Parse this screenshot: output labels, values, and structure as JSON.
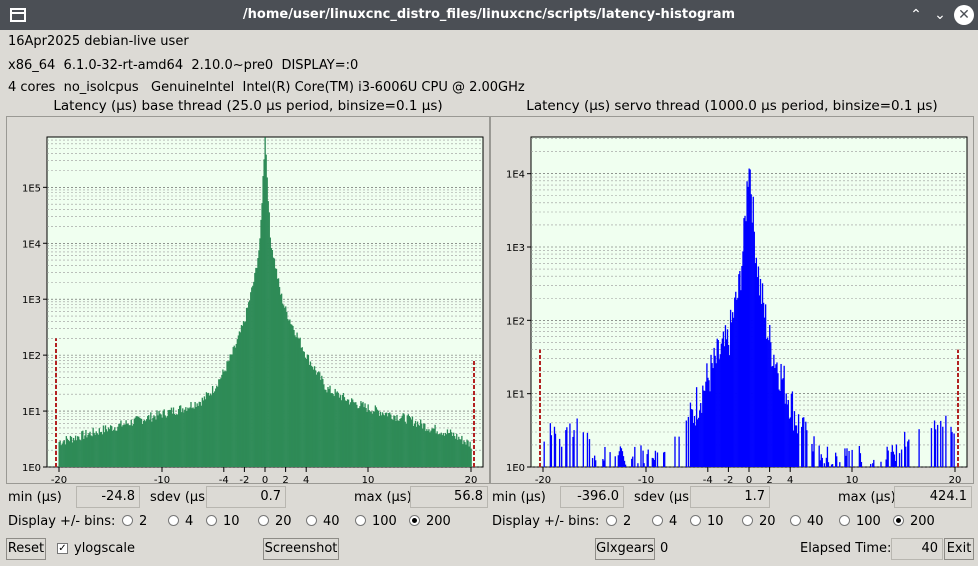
{
  "window": {
    "title": "/home/user/linuxcnc_distro_files/linuxcnc/scripts/latency-histogram",
    "icons": [
      "window-menu-icon",
      "maximize-icon",
      "minimize-icon",
      "close-icon"
    ]
  },
  "info": {
    "line1": "16Apr2025 debian-live user",
    "line2": "x86_64  6.1.0-32-rt-amd64  2.10.0~pre0  DISPLAY=:0",
    "line3": "4 cores  no_isolcpus   GenuineIntel  Intel(R) Core(TM) i3-6006U CPU @ 2.00GHz"
  },
  "panels": [
    {
      "title": "Latency (µs) base thread (25.0 µs period, binsize=0.1 µs)",
      "min_label": "min (µs)",
      "min_value": "-24.8",
      "sdev_label": "sdev (µs)",
      "sdev_value": "0.7",
      "max_label": "max (µs)",
      "max_value": "56.8",
      "bins_label": "Display +/- bins:",
      "bins_options": [
        "2",
        "4",
        "10",
        "20",
        "40",
        "100",
        "200"
      ],
      "bins_selected": "200"
    },
    {
      "title": "Latency (µs) servo thread (1000.0 µs period, binsize=0.1 µs)",
      "min_label": "min (µs)",
      "min_value": "-396.0",
      "sdev_label": "sdev (µs)",
      "sdev_value": "1.7",
      "max_label": "max (µs)",
      "max_value": "424.1",
      "bins_label": "Display +/- bins:",
      "bins_options": [
        "2",
        "4",
        "10",
        "20",
        "40",
        "100",
        "200"
      ],
      "bins_selected": "200"
    }
  ],
  "bottom": {
    "reset_label": "Reset",
    "ylogscale_label": "ylogscale",
    "ylogscale_checked": true,
    "screenshot_label": "Screenshot",
    "glxgears_label": "Glxgears",
    "glxgears_count": "0",
    "elapsed_label": "Elapsed Time:",
    "elapsed_value": "40",
    "exit_label": "Exit"
  },
  "chart_data": [
    {
      "type": "bar",
      "ylog": true,
      "bar_color": "#2e8b57",
      "outlier_color": "#b22222",
      "plot_bg": "#f0fff0",
      "xlim": [
        -20,
        20
      ],
      "ylim_log10": [
        0,
        5.9
      ],
      "x_ticks": [
        -20,
        -10,
        -4,
        -2,
        0,
        2,
        4,
        10,
        20
      ],
      "y_ticks": [
        "1E0",
        "1E1",
        "1E2",
        "1E3",
        "1E4",
        "1E5"
      ],
      "envelope_log10": [
        [
          -20,
          0.45
        ],
        [
          -18,
          0.55
        ],
        [
          -16,
          0.65
        ],
        [
          -14,
          0.75
        ],
        [
          -12,
          0.85
        ],
        [
          -10,
          0.95
        ],
        [
          -8,
          1.05
        ],
        [
          -6,
          1.2
        ],
        [
          -5,
          1.4
        ],
        [
          -4,
          1.7
        ],
        [
          -3,
          2.1
        ],
        [
          -2,
          2.6
        ],
        [
          -1.5,
          3.0
        ],
        [
          -1,
          3.4
        ],
        [
          -0.5,
          4.0
        ],
        [
          0,
          5.95
        ],
        [
          0.5,
          4.1
        ],
        [
          1,
          3.6
        ],
        [
          1.5,
          3.1
        ],
        [
          2,
          2.8
        ],
        [
          3,
          2.4
        ],
        [
          4,
          2.0
        ],
        [
          5,
          1.7
        ],
        [
          6,
          1.4
        ],
        [
          8,
          1.2
        ],
        [
          10,
          1.05
        ],
        [
          12,
          0.95
        ],
        [
          14,
          0.85
        ],
        [
          16,
          0.7
        ],
        [
          18,
          0.6
        ],
        [
          20,
          0.4
        ]
      ],
      "outliers": [
        {
          "x": -20.8,
          "log10": 2.3
        },
        {
          "x": 20.8,
          "log10": 1.9
        }
      ]
    },
    {
      "type": "bar",
      "ylog": true,
      "bar_color": "#0000ff",
      "outlier_color": "#b22222",
      "plot_bg": "#f0fff0",
      "xlim": [
        -20,
        20
      ],
      "ylim_log10": [
        0,
        4.5
      ],
      "x_ticks": [
        -20,
        -10,
        -4,
        -2,
        0,
        2,
        4,
        10,
        20
      ],
      "y_ticks": [
        "1E0",
        "1E1",
        "1E2",
        "1E3",
        "1E4"
      ],
      "envelope_log10": [
        [
          -20,
          0.3
        ],
        [
          -19,
          0.4
        ],
        [
          -18,
          0.2
        ],
        [
          -17,
          0.4
        ],
        [
          -16,
          0.3
        ],
        [
          -15,
          0.0
        ],
        [
          -8,
          0.0
        ],
        [
          -7,
          0.3
        ],
        [
          -6,
          0.5
        ],
        [
          -5,
          0.9
        ],
        [
          -4,
          1.2
        ],
        [
          -3,
          1.5
        ],
        [
          -2,
          1.7
        ],
        [
          -1.5,
          2.1
        ],
        [
          -1,
          2.4
        ],
        [
          -0.5,
          3.1
        ],
        [
          0,
          4.25
        ],
        [
          0.5,
          3.2
        ],
        [
          1,
          2.5
        ],
        [
          1.5,
          2.1
        ],
        [
          2,
          1.7
        ],
        [
          3,
          1.3
        ],
        [
          4,
          0.9
        ],
        [
          5,
          0.5
        ],
        [
          6,
          0.2
        ],
        [
          7,
          0.0
        ],
        [
          14,
          0.0
        ],
        [
          15,
          0.2
        ],
        [
          16,
          0.3
        ],
        [
          17,
          0.2
        ],
        [
          18,
          0.4
        ],
        [
          19,
          0.5
        ],
        [
          20,
          0.3
        ]
      ],
      "outliers": [
        {
          "x": -20.8,
          "log10": 1.6
        },
        {
          "x": 20.8,
          "log10": 1.6
        }
      ]
    }
  ]
}
